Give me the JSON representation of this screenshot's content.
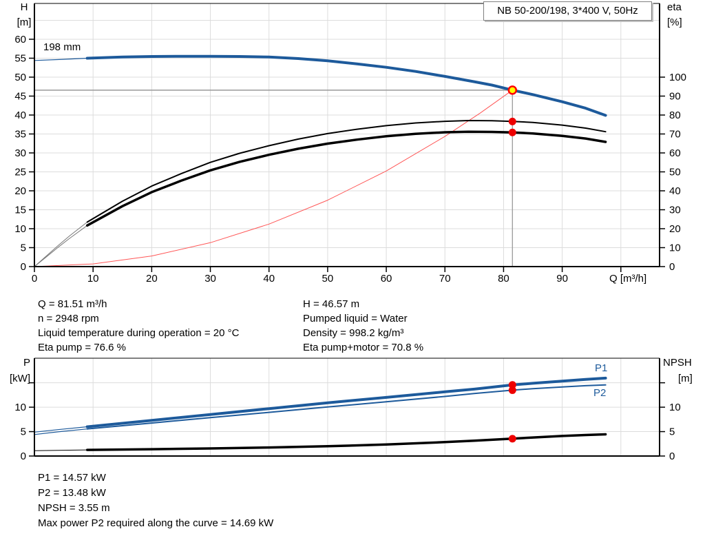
{
  "header": {
    "title": "NB 50-200/198, 3*400 V, 50Hz"
  },
  "labels": {
    "impeller": "198 mm",
    "p1": "P1",
    "p2": "P2",
    "h_axis": "H",
    "h_unit": "[m]",
    "eta_axis": "eta",
    "eta_unit": "[%]",
    "q_axis": "Q [m³/h]",
    "p_axis": "P",
    "p_unit": "[kW]",
    "npsh_axis": "NPSH",
    "npsh_unit": "[m]"
  },
  "info": {
    "left": [
      "Q = 81.51 m³/h",
      "n = 2948 rpm",
      "Liquid temperature during operation = 20 °C",
      "Eta pump = 76.6 %"
    ],
    "right": [
      "H = 46.57 m",
      "Pumped liquid = Water",
      "Density = 998.2 kg/m³",
      "Eta pump+motor = 70.8 %"
    ],
    "bottom": [
      "P1 = 14.57 kW",
      "P2 = 13.48 kW",
      "NPSH = 3.55 m",
      "Max power P2 required along the curve = 14.69 kW"
    ]
  },
  "colors": {
    "curve_blue": "#1d5a9b",
    "curve_black": "#000000",
    "sys_red": "#ff5555",
    "dot_red": "#ee0000",
    "op_yellow": "#ffff00",
    "op_ring": "#ff0000",
    "grid": "#dcdcdc",
    "crosshair": "#999999",
    "axis": "#000000"
  },
  "chart_data": [
    {
      "type": "line",
      "title": "Pump curve QH with efficiency",
      "x_axis": {
        "label": "Q [m³/h]",
        "min": 0,
        "max": 106.6,
        "grid": [
          10,
          20,
          30,
          40,
          50,
          60,
          70,
          80,
          90,
          100
        ],
        "ticks": [
          [
            0,
            "0"
          ],
          [
            10,
            "10"
          ],
          [
            20,
            "20"
          ],
          [
            30,
            "30"
          ],
          [
            40,
            "40"
          ],
          [
            50,
            "50"
          ],
          [
            60,
            "60"
          ],
          [
            70,
            "70"
          ],
          [
            80,
            "80"
          ],
          [
            90,
            "90"
          ],
          [
            100,
            ""
          ]
        ]
      },
      "y_left": {
        "label": "H [m]",
        "min": 0,
        "max": 69.45,
        "grid": [
          5,
          10,
          15,
          20,
          25,
          30,
          35,
          40,
          45,
          50,
          55,
          60,
          65
        ],
        "ticks": [
          [
            0,
            "0"
          ],
          [
            5,
            "5"
          ],
          [
            10,
            "10"
          ],
          [
            15,
            "15"
          ],
          [
            20,
            "20"
          ],
          [
            25,
            "25"
          ],
          [
            30,
            "30"
          ],
          [
            35,
            "35"
          ],
          [
            40,
            "40"
          ],
          [
            45,
            "45"
          ],
          [
            50,
            "50"
          ],
          [
            55,
            "55"
          ],
          [
            60,
            "60"
          ]
        ]
      },
      "y_right": {
        "label": "eta [%]",
        "min": 0,
        "max": 138.9,
        "ticks": [
          [
            0,
            "0"
          ],
          [
            10,
            "10"
          ],
          [
            20,
            "20"
          ],
          [
            30,
            "30"
          ],
          [
            40,
            "40"
          ],
          [
            50,
            "50"
          ],
          [
            60,
            "60"
          ],
          [
            70,
            "70"
          ],
          [
            80,
            "80"
          ],
          [
            90,
            "90"
          ],
          [
            100,
            "100"
          ]
        ]
      },
      "crosshair": {
        "q": 81.51,
        "h": 46.57
      },
      "series": [
        {
          "name": "system-parabola",
          "axis": "left",
          "color": "#ff5555",
          "width": 1,
          "points": [
            [
              0,
              0
            ],
            [
              10,
              0.7
            ],
            [
              20,
              2.8
            ],
            [
              30,
              6.31
            ],
            [
              40,
              11.21
            ],
            [
              50,
              17.52
            ],
            [
              60,
              25.23
            ],
            [
              70,
              34.34
            ],
            [
              76,
              40.5
            ],
            [
              81.51,
              46.57
            ]
          ]
        },
        {
          "name": "eta-pump-start",
          "axis": "right",
          "color": "#777777",
          "width": 1,
          "points": [
            [
              0,
              0
            ],
            [
              2,
              5.5
            ],
            [
              4,
              11
            ],
            [
              6,
              16.2
            ],
            [
              9,
              23.5
            ]
          ]
        },
        {
          "name": "eta-pump-motor-start",
          "axis": "right",
          "color": "#777777",
          "width": 1,
          "points": [
            [
              0,
              0
            ],
            [
              2,
              5
            ],
            [
              4,
              10.1
            ],
            [
              6,
              14.9
            ],
            [
              9,
              21.7
            ]
          ]
        },
        {
          "name": "eta-pump",
          "axis": "right",
          "color": "#000000",
          "width": 2,
          "points": [
            [
              9,
              23.5
            ],
            [
              15,
              34.5
            ],
            [
              20,
              42.5
            ],
            [
              25,
              49
            ],
            [
              30,
              55
            ],
            [
              35,
              59.8
            ],
            [
              40,
              63.8
            ],
            [
              45,
              67.3
            ],
            [
              50,
              70.2
            ],
            [
              55,
              72.5
            ],
            [
              60,
              74.4
            ],
            [
              65,
              75.8
            ],
            [
              70,
              76.7
            ],
            [
              74,
              77.1
            ],
            [
              78,
              77.0
            ],
            [
              81.51,
              76.6
            ],
            [
              85,
              76.1
            ],
            [
              90,
              74.7
            ],
            [
              94,
              73.1
            ],
            [
              97.4,
              71.2
            ]
          ]
        },
        {
          "name": "eta-pump-motor",
          "axis": "right",
          "color": "#000000",
          "width": 3.5,
          "points": [
            [
              9,
              21.7
            ],
            [
              15,
              31.9
            ],
            [
              20,
              39.3
            ],
            [
              25,
              45.3
            ],
            [
              30,
              50.8
            ],
            [
              35,
              55.3
            ],
            [
              40,
              59
            ],
            [
              45,
              62.2
            ],
            [
              50,
              64.9
            ],
            [
              55,
              67
            ],
            [
              60,
              68.8
            ],
            [
              65,
              70.1
            ],
            [
              70,
              70.9
            ],
            [
              74,
              71.2
            ],
            [
              78,
              71.1
            ],
            [
              81.51,
              70.8
            ],
            [
              85,
              70.3
            ],
            [
              90,
              69
            ],
            [
              94,
              67.6
            ],
            [
              97.4,
              65.8
            ]
          ]
        },
        {
          "name": "qh-start",
          "axis": "left",
          "color": "#1d5a9b",
          "width": 1.2,
          "points": [
            [
              0,
              54.4
            ],
            [
              5,
              54.7
            ],
            [
              9,
              55.0
            ]
          ]
        },
        {
          "name": "qh-curve",
          "axis": "left",
          "color": "#1d5a9b",
          "width": 4,
          "points": [
            [
              9,
              55.0
            ],
            [
              15,
              55.3
            ],
            [
              20,
              55.45
            ],
            [
              25,
              55.5
            ],
            [
              30,
              55.5
            ],
            [
              35,
              55.45
            ],
            [
              40,
              55.3
            ],
            [
              45,
              54.9
            ],
            [
              50,
              54.3
            ],
            [
              55,
              53.5
            ],
            [
              60,
              52.6
            ],
            [
              65,
              51.5
            ],
            [
              70,
              50.2
            ],
            [
              75,
              48.8
            ],
            [
              78,
              47.9
            ],
            [
              81.51,
              46.57
            ],
            [
              85,
              45.4
            ],
            [
              90,
              43.5
            ],
            [
              94,
              41.8
            ],
            [
              97.4,
              39.9
            ]
          ]
        }
      ],
      "markers": [
        {
          "name": "eta-pump-point",
          "axis": "right",
          "q": 81.51,
          "v": 76.6,
          "r": 5.5,
          "fill": "#ee0000"
        },
        {
          "name": "eta-pump-motor-point",
          "axis": "right",
          "q": 81.51,
          "v": 70.8,
          "r": 5.5,
          "fill": "#ee0000"
        },
        {
          "name": "duty-point",
          "axis": "left",
          "q": 81.51,
          "v": 46.57,
          "r": 5.5,
          "fill": "#ffff00",
          "ring": "#ff0000",
          "ringw": 2.5
        }
      ]
    },
    {
      "type": "line",
      "title": "Power and NPSH curves",
      "x_axis": {
        "label": "",
        "min": 0,
        "max": 106.6,
        "grid": [
          10,
          20,
          30,
          40,
          50,
          60,
          70,
          80,
          90,
          100
        ],
        "ticks": []
      },
      "y_left": {
        "label": "P [kW]",
        "min": 0,
        "max": 20.03,
        "grid": [
          5,
          10,
          15
        ],
        "ticks": [
          [
            0,
            "0"
          ],
          [
            5,
            "5"
          ],
          [
            10,
            "10"
          ],
          [
            15,
            ""
          ]
        ]
      },
      "y_right": {
        "label": "NPSH [m]",
        "min": 0,
        "max": 20.03,
        "ticks": [
          [
            0,
            "0"
          ],
          [
            5,
            "5"
          ],
          [
            10,
            "10"
          ],
          [
            15,
            ""
          ]
        ]
      },
      "series": [
        {
          "name": "npsh-start",
          "axis": "left",
          "color": "#000000",
          "width": 1,
          "points": [
            [
              0,
              1.1
            ],
            [
              4,
              1.17
            ],
            [
              9,
              1.25
            ]
          ]
        },
        {
          "name": "npsh-curve",
          "axis": "left",
          "color": "#000000",
          "width": 3.5,
          "points": [
            [
              9,
              1.25
            ],
            [
              20,
              1.4
            ],
            [
              30,
              1.55
            ],
            [
              40,
              1.75
            ],
            [
              50,
              2.0
            ],
            [
              60,
              2.35
            ],
            [
              70,
              2.85
            ],
            [
              75,
              3.15
            ],
            [
              81.51,
              3.55
            ],
            [
              85,
              3.8
            ],
            [
              90,
              4.1
            ],
            [
              94,
              4.3
            ],
            [
              97.4,
              4.45
            ]
          ]
        },
        {
          "name": "p2-start",
          "axis": "left",
          "color": "#1d5a9b",
          "width": 1.2,
          "points": [
            [
              0,
              4.4
            ],
            [
              4,
              4.95
            ],
            [
              9,
              5.55
            ]
          ]
        },
        {
          "name": "p2-curve",
          "axis": "left",
          "color": "#1d5a9b",
          "width": 2,
          "points": [
            [
              9,
              5.55
            ],
            [
              20,
              6.75
            ],
            [
              30,
              7.85
            ],
            [
              40,
              8.95
            ],
            [
              50,
              10.05
            ],
            [
              60,
              11.1
            ],
            [
              70,
              12.2
            ],
            [
              75,
              12.8
            ],
            [
              81.51,
              13.48
            ],
            [
              85,
              13.8
            ],
            [
              90,
              14.15
            ],
            [
              94,
              14.4
            ],
            [
              97.4,
              14.55
            ]
          ]
        },
        {
          "name": "p1-start",
          "axis": "left",
          "color": "#1d5a9b",
          "width": 1.2,
          "points": [
            [
              0,
              4.9
            ],
            [
              4,
              5.4
            ],
            [
              9,
              6.0
            ]
          ]
        },
        {
          "name": "p1-curve",
          "axis": "left",
          "color": "#1d5a9b",
          "width": 4,
          "points": [
            [
              9,
              6.0
            ],
            [
              20,
              7.3
            ],
            [
              30,
              8.5
            ],
            [
              40,
              9.7
            ],
            [
              50,
              10.9
            ],
            [
              60,
              12.0
            ],
            [
              70,
              13.15
            ],
            [
              75,
              13.7
            ],
            [
              81.51,
              14.57
            ],
            [
              85,
              14.9
            ],
            [
              90,
              15.35
            ],
            [
              94,
              15.7
            ],
            [
              97.4,
              15.95
            ]
          ]
        }
      ],
      "markers": [
        {
          "name": "p1-point",
          "axis": "left",
          "q": 81.51,
          "v": 14.57,
          "r": 5.5,
          "fill": "#ee0000"
        },
        {
          "name": "p2-point",
          "axis": "left",
          "q": 81.51,
          "v": 13.48,
          "r": 5.5,
          "fill": "#ee0000"
        },
        {
          "name": "npsh-point",
          "axis": "left",
          "q": 81.51,
          "v": 3.55,
          "r": 5.5,
          "fill": "#ee0000"
        }
      ]
    }
  ]
}
